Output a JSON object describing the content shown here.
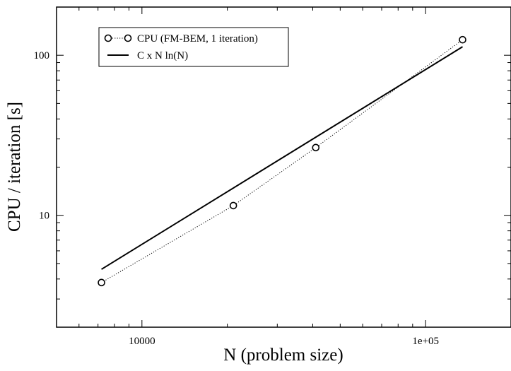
{
  "chart_data": {
    "type": "line",
    "title": "",
    "xlabel": "N (problem size)",
    "ylabel": "CPU / iteration [s]",
    "xscale": "log",
    "yscale": "log",
    "xlim": [
      5000,
      200000
    ],
    "ylim": [
      2,
      200
    ],
    "x_ticks": [
      {
        "value": 10000,
        "label": "10000"
      },
      {
        "value": 100000,
        "label": "1e+05"
      }
    ],
    "y_ticks": [
      {
        "value": 10,
        "label": "10"
      },
      {
        "value": 100,
        "label": "100"
      }
    ],
    "grid": false,
    "legend_position": "top-left",
    "series": [
      {
        "name": "CPU (FM-BEM, 1 iteration)",
        "style": "dotted-with-circle-markers",
        "color": "#000000",
        "points": [
          {
            "x": 7200,
            "y": 3.8
          },
          {
            "x": 21000,
            "y": 11.5
          },
          {
            "x": 41000,
            "y": 26.5
          },
          {
            "x": 135000,
            "y": 125
          }
        ]
      },
      {
        "name": "C x N ln(N)",
        "style": "solid",
        "color": "#000000",
        "points": [
          {
            "x": 7200,
            "y": 4.6
          },
          {
            "x": 135000,
            "y": 113
          }
        ]
      }
    ]
  }
}
